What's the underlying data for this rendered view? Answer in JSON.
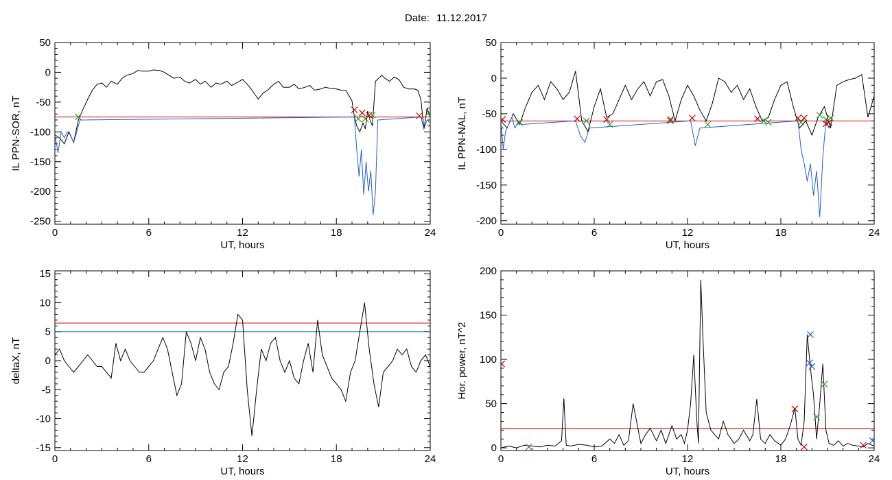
{
  "header": {
    "date_label": "Date:",
    "date_value": "11.12.2017"
  },
  "chart_data": [
    {
      "type": "line",
      "xlabel": "UT, hours",
      "ylabel": "IL PPN-SOR, nT",
      "xlim": [
        0,
        24
      ],
      "ylim": [
        -255,
        50
      ],
      "xticks": [
        0,
        6,
        12,
        18,
        24
      ],
      "yticks": [
        -250,
        -200,
        -150,
        -100,
        -50,
        0,
        50
      ],
      "threshold": {
        "value": -75,
        "color": "#e00000"
      },
      "series": [
        {
          "color": "#000000",
          "x": [
            0,
            0.3,
            0.6,
            0.9,
            1.2,
            1.5,
            1.8,
            2.1,
            2.4,
            2.7,
            3,
            3.3,
            3.6,
            4,
            4.3,
            4.6,
            5,
            5.3,
            5.6,
            6,
            6.3,
            6.7,
            7,
            7.3,
            7.6,
            8,
            8.3,
            8.6,
            9,
            9.3,
            9.6,
            10,
            10.3,
            10.6,
            11,
            11.3,
            11.6,
            12,
            12.3,
            12.6,
            13,
            13.3,
            13.6,
            14,
            14.3,
            14.6,
            15,
            15.3,
            15.6,
            16,
            16.3,
            16.6,
            17,
            17.3,
            17.6,
            18,
            18.3,
            18.6,
            19,
            19.15,
            19.3,
            19.5,
            19.7,
            19.85,
            20,
            20.15,
            20.3,
            20.5,
            20.7,
            20.9,
            21.1,
            21.4,
            21.7,
            22,
            22.3,
            22.6,
            23,
            23.2,
            23.4,
            23.6,
            23.8,
            24
          ],
          "y": [
            -105,
            -110,
            -120,
            -100,
            -118,
            -80,
            -62,
            -45,
            -30,
            -20,
            -18,
            -25,
            -15,
            -20,
            -10,
            -5,
            -2,
            3,
            2,
            2,
            4,
            3,
            0,
            -5,
            -10,
            -8,
            -15,
            -18,
            -12,
            -20,
            -15,
            -25,
            -18,
            -20,
            -15,
            -22,
            -18,
            -12,
            -20,
            -30,
            -45,
            -35,
            -30,
            -20,
            -15,
            -25,
            -25,
            -20,
            -28,
            -25,
            -22,
            -30,
            -28,
            -25,
            -27,
            -28,
            -30,
            -30,
            -48,
            -75,
            -90,
            -100,
            -85,
            -95,
            -65,
            -80,
            -90,
            -15,
            -10,
            -5,
            -10,
            -15,
            -8,
            -12,
            -25,
            -28,
            -28,
            -30,
            -45,
            -95,
            -60,
            -75
          ]
        },
        {
          "color": "#1f5fcf",
          "x": [
            0,
            0.2,
            0.4,
            0.6,
            0.8,
            1,
            1.2,
            1.4,
            1.6,
            19.15,
            19.3,
            19.45,
            19.6,
            19.75,
            19.9,
            20.05,
            20.2,
            20.35,
            20.5,
            20.65,
            23.4,
            23.6,
            23.8,
            24
          ],
          "y": [
            -105,
            -135,
            -100,
            -110,
            -100,
            -105,
            -118,
            -100,
            -80,
            -75,
            -130,
            -175,
            -130,
            -205,
            -150,
            -200,
            -165,
            -240,
            -200,
            -80,
            -75,
            -95,
            -80,
            -85
          ]
        }
      ],
      "markers": [
        {
          "symbol": "x",
          "color": "#2a9a2a",
          "points": [
            [
              1.5,
              -75
            ],
            [
              19.4,
              -78
            ],
            [
              19.85,
              -78
            ],
            [
              20.3,
              -72
            ],
            [
              23.9,
              -68
            ]
          ]
        },
        {
          "symbol": "x",
          "color": "#cc0000",
          "points": [
            [
              19.15,
              -63
            ],
            [
              19.65,
              -68
            ],
            [
              20.1,
              -72
            ],
            [
              23.3,
              -73
            ]
          ]
        }
      ]
    },
    {
      "type": "line",
      "xlabel": "UT, hours",
      "ylabel": "IL PPN-NAL, nT",
      "xlim": [
        0,
        24
      ],
      "ylim": [
        -205,
        50
      ],
      "xticks": [
        0,
        6,
        12,
        18,
        24
      ],
      "yticks": [
        -200,
        -150,
        -100,
        -50,
        0,
        50
      ],
      "threshold": {
        "value": -60,
        "color": "#e00000"
      },
      "series": [
        {
          "color": "#000000",
          "x": [
            0,
            0.4,
            0.8,
            1.2,
            1.6,
            2,
            2.4,
            2.8,
            3.2,
            3.6,
            4,
            4.4,
            4.8,
            5.2,
            5.6,
            6,
            6.4,
            6.8,
            7.2,
            7.6,
            8,
            8.4,
            8.8,
            9.2,
            9.6,
            10,
            10.4,
            10.8,
            11.2,
            11.6,
            12,
            12.4,
            12.8,
            13.2,
            13.6,
            14,
            14.4,
            14.8,
            15.2,
            15.6,
            16,
            16.4,
            16.8,
            17.2,
            17.6,
            18,
            18.4,
            18.8,
            19.2,
            19.6,
            20,
            20.4,
            20.8,
            21.2,
            21.6,
            22,
            22.4,
            22.8,
            23.2,
            23.6,
            24
          ],
          "y": [
            -60,
            -70,
            -50,
            -65,
            -40,
            -20,
            -10,
            -30,
            -5,
            -15,
            -30,
            -20,
            10,
            -60,
            -75,
            -40,
            -15,
            -55,
            -50,
            -30,
            -10,
            -30,
            -15,
            -5,
            -25,
            -5,
            -2,
            -25,
            -60,
            -30,
            -10,
            -25,
            -45,
            -60,
            -35,
            0,
            -5,
            -20,
            -10,
            -30,
            -15,
            -40,
            -60,
            -55,
            -30,
            -10,
            -5,
            -40,
            -70,
            -60,
            -80,
            -55,
            -40,
            -70,
            -10,
            -5,
            -2,
            0,
            5,
            -55,
            -25
          ]
        },
        {
          "color": "#1f5fcf",
          "x": [
            0,
            0.15,
            0.3,
            0.5,
            0.7,
            0.9,
            1.1,
            1.3,
            4.8,
            5.1,
            5.4,
            5.7,
            12.2,
            12.5,
            12.8,
            19.1,
            19.3,
            19.5,
            19.7,
            19.9,
            20.1,
            20.3,
            20.5,
            20.7,
            20.9,
            21.1,
            21.3
          ],
          "y": [
            -60,
            -100,
            -75,
            -65,
            -55,
            -70,
            -62,
            -65,
            -60,
            -80,
            -90,
            -70,
            -60,
            -95,
            -70,
            -60,
            -100,
            -120,
            -145,
            -120,
            -165,
            -130,
            -195,
            -110,
            -60,
            -70,
            -60
          ]
        }
      ],
      "markers": [
        {
          "symbol": "x",
          "color": "#2a9a2a",
          "points": [
            [
              1.2,
              -62
            ],
            [
              5.5,
              -60
            ],
            [
              7,
              -65
            ],
            [
              10.9,
              -60
            ],
            [
              13.3,
              -65
            ],
            [
              16.9,
              -60
            ],
            [
              17.2,
              -62
            ],
            [
              19.3,
              -62
            ],
            [
              20.5,
              -52
            ],
            [
              20.9,
              -58
            ],
            [
              21.2,
              -56
            ]
          ]
        },
        {
          "symbol": "x",
          "color": "#cc0000",
          "points": [
            [
              0.1,
              -58
            ],
            [
              4.9,
              -57
            ],
            [
              6.8,
              -58
            ],
            [
              10.9,
              -58
            ],
            [
              12.3,
              -56
            ],
            [
              16.5,
              -57
            ],
            [
              19.1,
              -56
            ],
            [
              19.5,
              -56
            ],
            [
              20.9,
              -64
            ],
            [
              21.1,
              -62
            ]
          ]
        }
      ]
    },
    {
      "type": "line",
      "xlabel": "UT, hours",
      "ylabel": "deltaX, nT",
      "xlim": [
        0,
        24
      ],
      "ylim": [
        -15.5,
        15.5
      ],
      "xticks": [
        0,
        6,
        12,
        18,
        24
      ],
      "yticks": [
        -15,
        -10,
        -5,
        0,
        5,
        10,
        15
      ],
      "thresholds": [
        {
          "value": 6.5,
          "color": "#e00000"
        },
        {
          "value": 5,
          "color": "#1a7fb0"
        }
      ],
      "series": [
        {
          "color": "#000000",
          "x": [
            0,
            0.3,
            0.6,
            0.9,
            1.2,
            1.5,
            1.8,
            2.1,
            2.4,
            2.7,
            3,
            3.3,
            3.6,
            3.9,
            4.2,
            4.5,
            4.8,
            5.1,
            5.4,
            5.7,
            6,
            6.3,
            6.6,
            6.9,
            7.2,
            7.5,
            7.8,
            8.1,
            8.4,
            8.7,
            9,
            9.3,
            9.6,
            9.9,
            10.2,
            10.5,
            10.8,
            11.1,
            11.4,
            11.7,
            12,
            12.3,
            12.6,
            12.9,
            13.2,
            13.5,
            13.8,
            14.1,
            14.4,
            14.7,
            15,
            15.3,
            15.6,
            15.9,
            16.2,
            16.5,
            16.8,
            17.1,
            17.4,
            17.7,
            18,
            18.3,
            18.6,
            18.9,
            19.2,
            19.5,
            19.8,
            20.1,
            20.4,
            20.7,
            21,
            21.3,
            21.6,
            21.9,
            22.2,
            22.5,
            22.8,
            23.1,
            23.4,
            23.7,
            24
          ],
          "y": [
            1,
            2,
            0,
            -1,
            -2,
            -1,
            0,
            1,
            0,
            -1,
            -1,
            -2,
            -3,
            3,
            0,
            2,
            0,
            -1,
            -2,
            -2,
            -1,
            0,
            2,
            4,
            2,
            -2,
            -6,
            -4,
            5,
            3,
            0,
            4,
            2,
            -2,
            -4,
            -5,
            -2,
            -1,
            3,
            8,
            7,
            -5,
            -13,
            -5,
            2,
            0,
            3,
            4,
            0,
            -2,
            0,
            -3,
            -4,
            0,
            3,
            -2,
            7,
            1,
            -1,
            -3,
            -4,
            -5,
            -7,
            -2,
            0,
            5,
            10,
            2,
            -4,
            -8,
            -2,
            -1,
            0,
            2,
            1,
            2,
            -1,
            -2,
            0,
            1,
            -1
          ]
        }
      ],
      "markers": []
    },
    {
      "type": "line",
      "xlabel": "UT, hours",
      "ylabel": "Hor. power, nT^2",
      "xlim": [
        0,
        24
      ],
      "ylim": [
        -3,
        200
      ],
      "xticks": [
        0,
        6,
        12,
        18,
        24
      ],
      "yticks": [
        0,
        50,
        100,
        150,
        200
      ],
      "threshold": {
        "value": 22,
        "color": "#e00000"
      },
      "series": [
        {
          "color": "#000000",
          "x": [
            0,
            0.5,
            1,
            1.5,
            2,
            2.5,
            3,
            3.5,
            3.9,
            4.05,
            4.2,
            4.5,
            5,
            5.5,
            6,
            6.5,
            7,
            7.3,
            7.6,
            7.9,
            8.2,
            8.5,
            9,
            9.3,
            9.6,
            10,
            10.3,
            10.6,
            11,
            11.3,
            11.6,
            11.8,
            12,
            12.2,
            12.4,
            12.6,
            12.7,
            12.85,
            13,
            13.2,
            13.5,
            14,
            14.3,
            14.6,
            15,
            15.3,
            15.6,
            16,
            16.2,
            16.45,
            16.7,
            17,
            17.3,
            17.6,
            18,
            18.3,
            18.6,
            18.9,
            19.1,
            19.3,
            19.5,
            19.7,
            19.9,
            20.1,
            20.3,
            20.5,
            20.7,
            20.9,
            21.1,
            21.4,
            21.7,
            22,
            22.3,
            22.6,
            23,
            23.3,
            23.6,
            24
          ],
          "y": [
            0,
            2,
            0,
            3,
            2,
            1,
            3,
            2,
            8,
            56,
            3,
            2,
            4,
            3,
            1,
            2,
            10,
            5,
            15,
            3,
            8,
            50,
            5,
            15,
            22,
            8,
            20,
            5,
            25,
            10,
            15,
            5,
            20,
            50,
            105,
            30,
            5,
            190,
            120,
            40,
            20,
            10,
            30,
            15,
            5,
            10,
            20,
            8,
            15,
            55,
            10,
            5,
            15,
            8,
            3,
            10,
            25,
            45,
            10,
            3,
            30,
            128,
            90,
            60,
            10,
            50,
            95,
            20,
            5,
            3,
            8,
            2,
            5,
            3,
            2,
            1,
            5,
            2
          ]
        }
      ],
      "markers": [
        {
          "symbol": "x",
          "color": "#cc0000",
          "points": [
            [
              0.05,
              95
            ],
            [
              18.9,
              44
            ],
            [
              19.5,
              1
            ],
            [
              23.3,
              3
            ]
          ]
        },
        {
          "symbol": "x",
          "color": "#1f5fcf",
          "points": [
            [
              19.9,
              128
            ],
            [
              19.85,
              96
            ],
            [
              20.0,
              92
            ],
            [
              23.9,
              8
            ]
          ]
        },
        {
          "symbol": "x",
          "color": "#2a9a2a",
          "points": [
            [
              1.8,
              1
            ],
            [
              20.3,
              35
            ],
            [
              20.8,
              72
            ]
          ]
        }
      ]
    }
  ]
}
